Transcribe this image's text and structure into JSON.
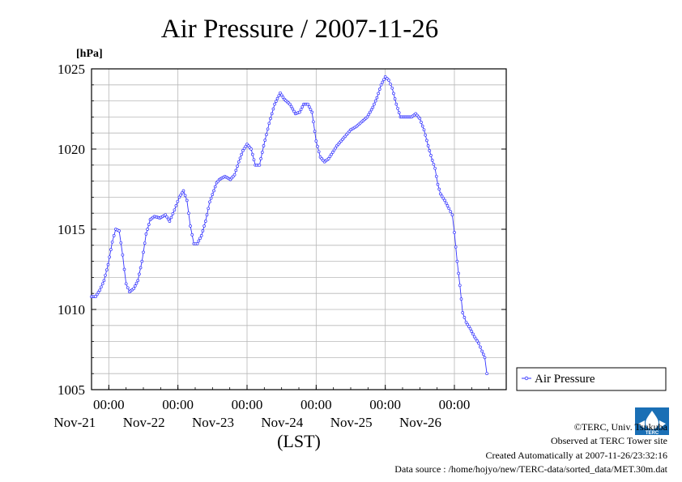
{
  "chart_data": {
    "type": "line",
    "title": "Air Pressure / 2007-11-26",
    "unit_label": "[hPa]",
    "xlabel": "(LST)",
    "ylim": [
      1005,
      1025
    ],
    "yticks": [
      "1005",
      "1010",
      "1015",
      "1020",
      "1025"
    ],
    "ytick_values": [
      1005,
      1010,
      1015,
      1020,
      1025
    ],
    "xlim": [
      20.75,
      26.75
    ],
    "xticks": [
      {
        "time": "00:00",
        "date": "Nov-21",
        "x": 21
      },
      {
        "time": "00:00",
        "date": "Nov-22",
        "x": 22
      },
      {
        "time": "00:00",
        "date": "Nov-23",
        "x": 23
      },
      {
        "time": "00:00",
        "date": "Nov-24",
        "x": 24
      },
      {
        "time": "00:00",
        "date": "Nov-25",
        "x": 25
      },
      {
        "time": "00:00",
        "date": "Nov-26",
        "x": 26
      }
    ],
    "grid": true,
    "legend": "right",
    "series": [
      {
        "name": "Air Pressure",
        "color": "#3333ff",
        "points": [
          [
            20.75,
            1010.8
          ],
          [
            20.81,
            1010.8
          ],
          [
            20.87,
            1011.2
          ],
          [
            20.93,
            1011.8
          ],
          [
            20.99,
            1012.8
          ],
          [
            21.05,
            1014.2
          ],
          [
            21.1,
            1015.0
          ],
          [
            21.15,
            1014.9
          ],
          [
            21.2,
            1013.4
          ],
          [
            21.25,
            1011.6
          ],
          [
            21.3,
            1011.1
          ],
          [
            21.36,
            1011.3
          ],
          [
            21.42,
            1011.8
          ],
          [
            21.48,
            1013.0
          ],
          [
            21.54,
            1014.7
          ],
          [
            21.6,
            1015.6
          ],
          [
            21.66,
            1015.8
          ],
          [
            21.74,
            1015.7
          ],
          [
            21.82,
            1015.9
          ],
          [
            21.88,
            1015.5
          ],
          [
            21.95,
            1016.2
          ],
          [
            22.02,
            1017.0
          ],
          [
            22.08,
            1017.4
          ],
          [
            22.13,
            1016.8
          ],
          [
            22.18,
            1015.2
          ],
          [
            22.23,
            1014.1
          ],
          [
            22.28,
            1014.1
          ],
          [
            22.34,
            1014.6
          ],
          [
            22.4,
            1015.5
          ],
          [
            22.46,
            1016.7
          ],
          [
            22.52,
            1017.4
          ],
          [
            22.56,
            1017.9
          ],
          [
            22.6,
            1018.1
          ],
          [
            22.68,
            1018.3
          ],
          [
            22.76,
            1018.1
          ],
          [
            22.82,
            1018.4
          ],
          [
            22.88,
            1019.2
          ],
          [
            22.94,
            1019.9
          ],
          [
            23.0,
            1020.3
          ],
          [
            23.06,
            1020.0
          ],
          [
            23.12,
            1019.0
          ],
          [
            23.18,
            1019.0
          ],
          [
            23.24,
            1020.2
          ],
          [
            23.32,
            1021.6
          ],
          [
            23.4,
            1022.8
          ],
          [
            23.48,
            1023.5
          ],
          [
            23.54,
            1023.1
          ],
          [
            23.62,
            1022.8
          ],
          [
            23.7,
            1022.2
          ],
          [
            23.76,
            1022.3
          ],
          [
            23.82,
            1022.8
          ],
          [
            23.88,
            1022.8
          ],
          [
            23.94,
            1022.3
          ],
          [
            24.0,
            1020.5
          ],
          [
            24.06,
            1019.5
          ],
          [
            24.12,
            1019.2
          ],
          [
            24.18,
            1019.4
          ],
          [
            24.24,
            1019.8
          ],
          [
            24.3,
            1020.2
          ],
          [
            24.36,
            1020.5
          ],
          [
            24.42,
            1020.8
          ],
          [
            24.5,
            1021.2
          ],
          [
            24.58,
            1021.4
          ],
          [
            24.66,
            1021.7
          ],
          [
            24.74,
            1022.0
          ],
          [
            24.82,
            1022.6
          ],
          [
            24.88,
            1023.2
          ],
          [
            24.94,
            1024.0
          ],
          [
            25.0,
            1024.5
          ],
          [
            25.05,
            1024.3
          ],
          [
            25.1,
            1023.8
          ],
          [
            25.16,
            1022.8
          ],
          [
            25.22,
            1022.0
          ],
          [
            25.3,
            1022.0
          ],
          [
            25.38,
            1022.0
          ],
          [
            25.44,
            1022.2
          ],
          [
            25.5,
            1021.9
          ],
          [
            25.56,
            1021.2
          ],
          [
            25.62,
            1020.2
          ],
          [
            25.68,
            1019.3
          ],
          [
            25.72,
            1018.8
          ],
          [
            25.76,
            1017.8
          ],
          [
            25.8,
            1017.2
          ],
          [
            25.86,
            1016.8
          ],
          [
            25.92,
            1016.3
          ],
          [
            25.97,
            1015.9
          ],
          [
            26.0,
            1014.8
          ],
          [
            26.04,
            1013.0
          ],
          [
            26.08,
            1011.5
          ],
          [
            26.12,
            1009.8
          ],
          [
            26.17,
            1009.2
          ],
          [
            26.23,
            1008.8
          ],
          [
            26.29,
            1008.3
          ],
          [
            26.35,
            1007.9
          ],
          [
            26.4,
            1007.4
          ],
          [
            26.44,
            1007.0
          ],
          [
            26.47,
            1006.0
          ]
        ]
      }
    ]
  },
  "footer": {
    "copyright": "©TERC, Univ. Tsukuba",
    "observed": "Observed at TERC Tower site",
    "created": "Created Automatically at 2007-11-26/23:32:16",
    "source": "Data source : /home/hojyo/new/TERC-data/sorted_data/MET.30m.dat",
    "logo_text": "TERC",
    "logo_color": "#1a6fb5"
  }
}
